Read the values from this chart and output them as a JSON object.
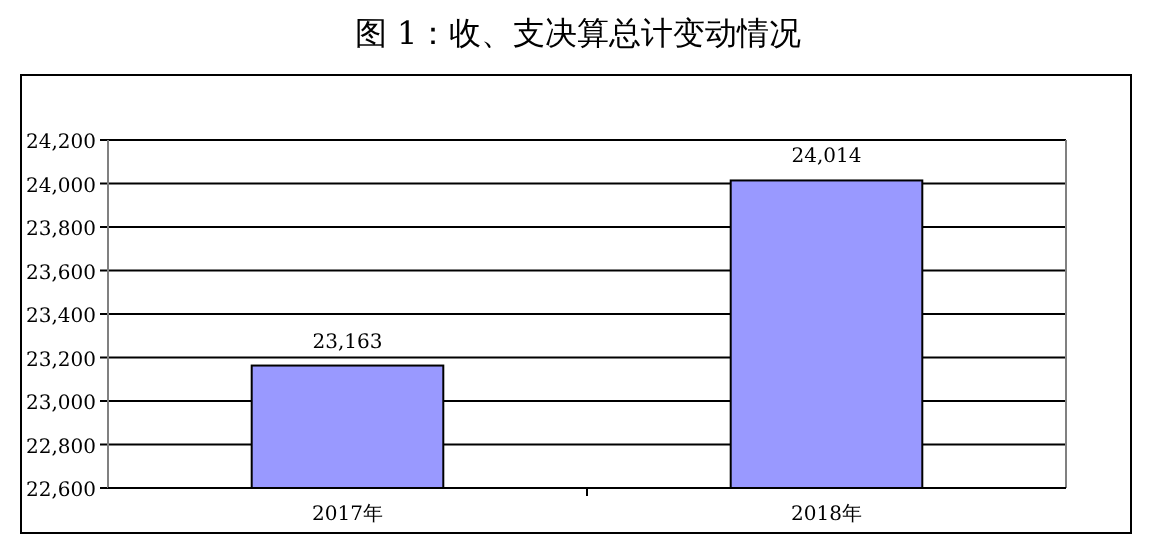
{
  "chart_data": {
    "type": "bar",
    "title": "图 1：收、支决算总计变动情况",
    "categories": [
      "2017年",
      "2018年"
    ],
    "values": [
      23163,
      24014
    ],
    "value_labels": [
      "23,163",
      "24,014"
    ],
    "color": "#9999ff",
    "ylim": [
      22600,
      24200
    ],
    "yticks": [
      {
        "value": 22600,
        "label": "22,600"
      },
      {
        "value": 22800,
        "label": "22,800"
      },
      {
        "value": 23000,
        "label": "23,000"
      },
      {
        "value": 23200,
        "label": "23,200"
      },
      {
        "value": 23400,
        "label": "23,400"
      },
      {
        "value": 23600,
        "label": "23,600"
      },
      {
        "value": 23800,
        "label": "23,800"
      },
      {
        "value": 24000,
        "label": "24,000"
      },
      {
        "value": 24200,
        "label": "24,200"
      }
    ],
    "grid": "y"
  }
}
